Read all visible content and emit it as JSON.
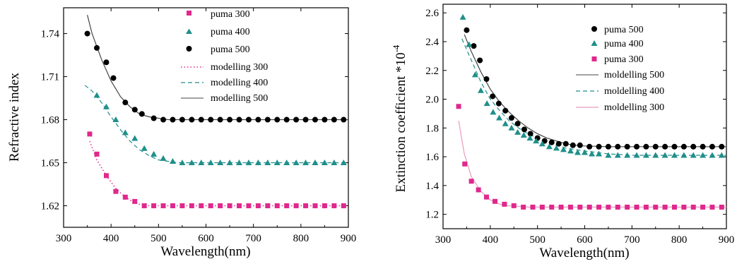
{
  "chart_data": [
    {
      "type": "scatter",
      "title": "",
      "xlabel": "Wavelength(nm)",
      "ylabel": "Refractive index",
      "xlim": [
        300,
        900
      ],
      "ylim": [
        1.605,
        1.758
      ],
      "xticks": [
        "300",
        "400",
        "500",
        "600",
        "700",
        "800",
        "900"
      ],
      "yticks": [
        "1.62",
        "1.65",
        "1.68",
        "1.71",
        "1.74"
      ],
      "legend_position": "top-right",
      "grid": false,
      "series": [
        {
          "name": "puma 300",
          "kind": "points",
          "marker": "square",
          "color": "#e0288c",
          "x": [
            355,
            370,
            390,
            410,
            430,
            450,
            470,
            490,
            510,
            530,
            550,
            570,
            590,
            610,
            630,
            650,
            670,
            690,
            710,
            730,
            750,
            770,
            790,
            810,
            830,
            850,
            870,
            890
          ],
          "y": [
            1.67,
            1.656,
            1.641,
            1.63,
            1.626,
            1.623,
            1.62,
            1.62,
            1.62,
            1.62,
            1.62,
            1.62,
            1.62,
            1.62,
            1.62,
            1.62,
            1.62,
            1.62,
            1.62,
            1.62,
            1.62,
            1.62,
            1.62,
            1.62,
            1.62,
            1.62,
            1.62,
            1.62
          ]
        },
        {
          "name": "puma 400",
          "kind": "points",
          "marker": "triangle",
          "color": "#1f8f8a",
          "x": [
            370,
            390,
            410,
            430,
            450,
            470,
            490,
            510,
            530,
            550,
            570,
            590,
            610,
            630,
            650,
            670,
            690,
            710,
            730,
            750,
            770,
            790,
            810,
            830,
            850,
            870,
            890
          ],
          "y": [
            1.697,
            1.689,
            1.68,
            1.671,
            1.667,
            1.66,
            1.656,
            1.653,
            1.651,
            1.65,
            1.65,
            1.65,
            1.65,
            1.65,
            1.65,
            1.65,
            1.65,
            1.65,
            1.65,
            1.65,
            1.65,
            1.65,
            1.65,
            1.65,
            1.65,
            1.65,
            1.65
          ]
        },
        {
          "name": "puma 500",
          "kind": "points",
          "marker": "circle",
          "color": "#000000",
          "x": [
            350,
            370,
            390,
            405,
            430,
            450,
            465,
            490,
            510,
            530,
            550,
            570,
            590,
            610,
            630,
            650,
            670,
            690,
            710,
            730,
            750,
            770,
            790,
            810,
            830,
            850,
            870,
            890
          ],
          "y": [
            1.74,
            1.73,
            1.72,
            1.709,
            1.692,
            1.687,
            1.684,
            1.681,
            1.68,
            1.68,
            1.68,
            1.68,
            1.68,
            1.68,
            1.68,
            1.68,
            1.68,
            1.68,
            1.68,
            1.68,
            1.68,
            1.68,
            1.68,
            1.68,
            1.68,
            1.68,
            1.68,
            1.68
          ]
        },
        {
          "name": "modelling 300",
          "kind": "line",
          "dash": "dot",
          "color": "#e0288c",
          "x": [
            355,
            370,
            390,
            410,
            430,
            450,
            470,
            490,
            900
          ],
          "y": [
            1.665,
            1.652,
            1.641,
            1.632,
            1.626,
            1.622,
            1.62,
            1.62,
            1.62
          ]
        },
        {
          "name": "modelling 400",
          "kind": "line",
          "dash": "dash",
          "color": "#1f8f8a",
          "x": [
            345,
            360,
            380,
            400,
            420,
            440,
            460,
            480,
            500,
            520,
            540,
            560,
            900
          ],
          "y": [
            1.704,
            1.7,
            1.692,
            1.682,
            1.673,
            1.665,
            1.659,
            1.655,
            1.652,
            1.651,
            1.65,
            1.65,
            1.65
          ]
        },
        {
          "name": "modelling 500",
          "kind": "line",
          "dash": "solid",
          "color": "#444444",
          "x": [
            350,
            360,
            380,
            400,
            420,
            440,
            460,
            480,
            500,
            520,
            540,
            900
          ],
          "y": [
            1.753,
            1.74,
            1.722,
            1.707,
            1.696,
            1.689,
            1.684,
            1.682,
            1.681,
            1.68,
            1.68,
            1.68
          ]
        }
      ]
    },
    {
      "type": "scatter",
      "title": "",
      "xlabel": "Wavelength(nm)",
      "ylabel": "Extinction coefficient *10",
      "ylabel_exponent": "-4",
      "xlim": [
        300,
        900
      ],
      "ylim": [
        1.1,
        2.66
      ],
      "xticks": [
        "300",
        "400",
        "500",
        "600",
        "700",
        "800",
        "900"
      ],
      "yticks": [
        "1.2",
        "1.4",
        "1.6",
        "1.8",
        "2.0",
        "2.2",
        "2.4",
        "2.6"
      ],
      "legend_position": "top-right",
      "grid": false,
      "series": [
        {
          "name": "puma 500",
          "kind": "points",
          "marker": "circle",
          "color": "#000000",
          "x": [
            350,
            365,
            378,
            392,
            405,
            418,
            432,
            445,
            458,
            472,
            485,
            500,
            515,
            530,
            545,
            560,
            575,
            590,
            610,
            630,
            650,
            670,
            690,
            710,
            730,
            750,
            770,
            790,
            810,
            830,
            850,
            870,
            890
          ],
          "y": [
            2.48,
            2.37,
            2.27,
            2.14,
            2.02,
            1.97,
            1.92,
            1.87,
            1.83,
            1.79,
            1.76,
            1.73,
            1.71,
            1.7,
            1.69,
            1.69,
            1.68,
            1.68,
            1.67,
            1.67,
            1.67,
            1.67,
            1.67,
            1.67,
            1.67,
            1.67,
            1.67,
            1.67,
            1.67,
            1.67,
            1.67,
            1.67,
            1.67
          ]
        },
        {
          "name": "puma 400",
          "kind": "points",
          "marker": "triangle",
          "color": "#1f8f8a",
          "x": [
            342,
            355,
            368,
            380,
            393,
            406,
            419,
            432,
            445,
            458,
            471,
            484,
            497,
            510,
            525,
            540,
            555,
            570,
            585,
            600,
            615,
            630,
            650,
            670,
            690,
            710,
            730,
            750,
            770,
            790,
            810,
            830,
            850,
            870,
            890
          ],
          "y": [
            2.57,
            2.38,
            2.17,
            2.06,
            1.97,
            1.91,
            1.87,
            1.83,
            1.8,
            1.77,
            1.75,
            1.73,
            1.71,
            1.69,
            1.67,
            1.66,
            1.65,
            1.64,
            1.63,
            1.63,
            1.62,
            1.62,
            1.61,
            1.61,
            1.61,
            1.61,
            1.61,
            1.61,
            1.61,
            1.61,
            1.61,
            1.61,
            1.61,
            1.61,
            1.61
          ]
        },
        {
          "name": "puma 300",
          "kind": "points",
          "marker": "square",
          "color": "#e0288c",
          "x": [
            333,
            346,
            360,
            375,
            392,
            410,
            430,
            450,
            470,
            490,
            510,
            530,
            550,
            570,
            590,
            610,
            630,
            650,
            670,
            690,
            710,
            730,
            750,
            770,
            790,
            810,
            830,
            850,
            870,
            890
          ],
          "y": [
            1.95,
            1.55,
            1.43,
            1.37,
            1.32,
            1.29,
            1.27,
            1.26,
            1.25,
            1.25,
            1.25,
            1.25,
            1.25,
            1.25,
            1.25,
            1.25,
            1.25,
            1.25,
            1.25,
            1.25,
            1.25,
            1.25,
            1.25,
            1.25,
            1.25,
            1.25,
            1.25,
            1.25,
            1.25,
            1.25
          ]
        },
        {
          "name": "moldelling 500",
          "kind": "line",
          "dash": "solid",
          "color": "#444444",
          "x": [
            345,
            360,
            380,
            400,
            420,
            440,
            460,
            480,
            500,
            520,
            540,
            560,
            580,
            600,
            650,
            700,
            900
          ],
          "y": [
            2.45,
            2.33,
            2.19,
            2.07,
            1.98,
            1.91,
            1.85,
            1.8,
            1.76,
            1.73,
            1.71,
            1.69,
            1.68,
            1.675,
            1.67,
            1.67,
            1.67
          ]
        },
        {
          "name": "moldelling 400",
          "kind": "line",
          "dash": "dash",
          "color": "#1f8f8a",
          "x": [
            340,
            360,
            380,
            400,
            420,
            440,
            460,
            480,
            500,
            520,
            540,
            560,
            580,
            600,
            650,
            700,
            900
          ],
          "y": [
            2.42,
            2.27,
            2.12,
            2.0,
            1.92,
            1.85,
            1.8,
            1.76,
            1.73,
            1.7,
            1.68,
            1.66,
            1.65,
            1.64,
            1.62,
            1.61,
            1.61
          ]
        },
        {
          "name": "moldelling 300",
          "kind": "line",
          "dash": "solid",
          "color": "#e89ac0",
          "x": [
            333,
            345,
            360,
            380,
            400,
            420,
            440,
            460,
            480,
            900
          ],
          "y": [
            1.85,
            1.62,
            1.46,
            1.36,
            1.3,
            1.27,
            1.26,
            1.255,
            1.25,
            1.25
          ]
        }
      ]
    }
  ]
}
